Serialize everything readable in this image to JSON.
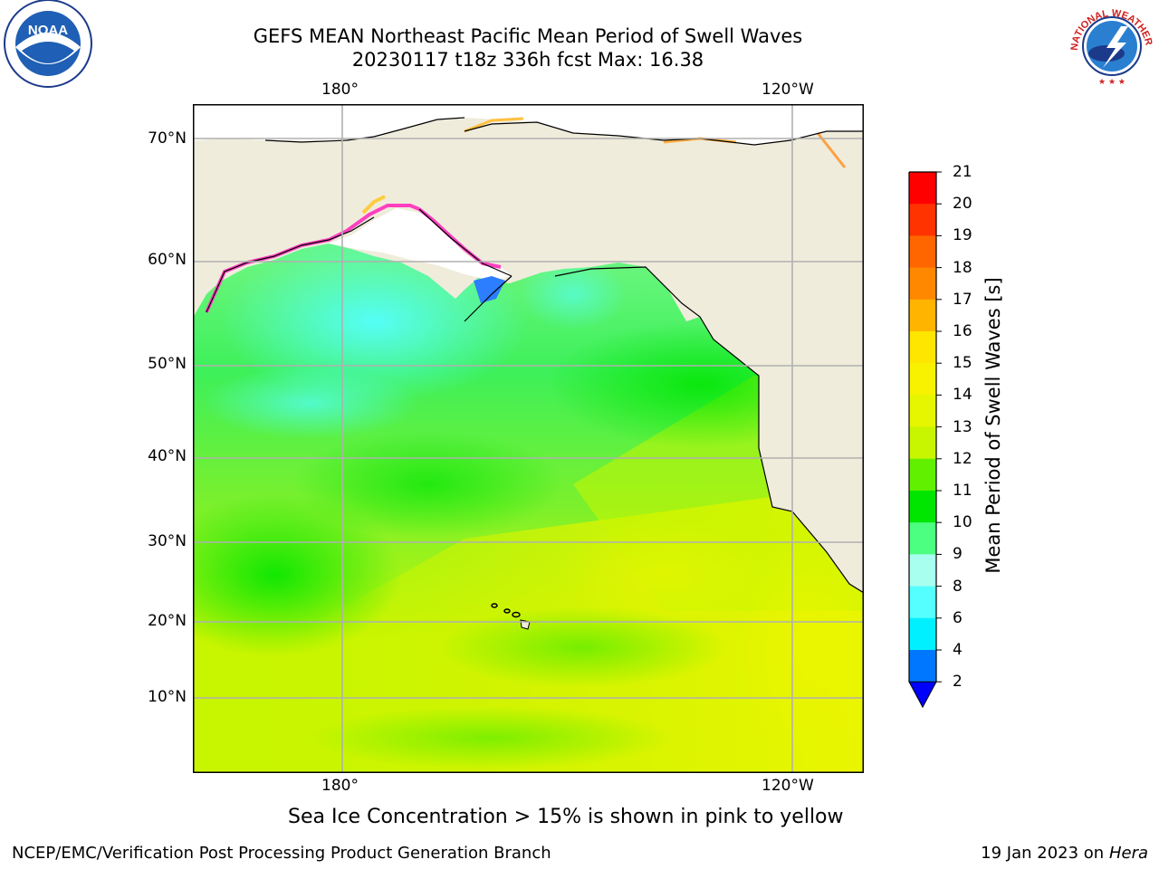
{
  "header": {
    "title_line1": "GEFS MEAN Northeast Pacific Mean Period of Swell Waves",
    "title_line2": "20230117 t18z 336h fcst   Max: 16.38"
  },
  "map": {
    "top_lon_labels": [
      "180°",
      "120°W"
    ],
    "bottom_lon_labels": [
      "180°",
      "120°W"
    ],
    "lat_labels": [
      "70°N",
      "60°N",
      "50°N",
      "40°N",
      "30°N",
      "20°N",
      "10°N"
    ],
    "land_color": "#efecdc",
    "grid_color": "#b0b0b0"
  },
  "colorbar": {
    "label": "Mean Period of Swell Waves [s]",
    "ticks": [
      "21",
      "20",
      "19",
      "18",
      "17",
      "16",
      "15",
      "14",
      "13",
      "12",
      "11",
      "10",
      "9",
      "8",
      "6",
      "4",
      "2"
    ],
    "colors": [
      "#ff0000",
      "#ff3300",
      "#ff6600",
      "#ff8800",
      "#ffb400",
      "#ffe600",
      "#f8f200",
      "#e6f500",
      "#c8f500",
      "#60f000",
      "#00e600",
      "#4dff80",
      "#a8fff0",
      "#55ffff",
      "#00f0ff",
      "#0077ff"
    ],
    "extend_color": "#0000ff"
  },
  "notes": {
    "sea_ice": "Sea Ice Concentration > 15% is shown in pink to yellow"
  },
  "footer": {
    "left": "NCEP/EMC/Verification Post Processing Product Generation Branch",
    "date": "19 Jan 2023 on",
    "host": "Hera"
  },
  "logos": {
    "noaa_text": "NOAA",
    "nws_text": "NATIONAL WEATHER SERVICE"
  }
}
